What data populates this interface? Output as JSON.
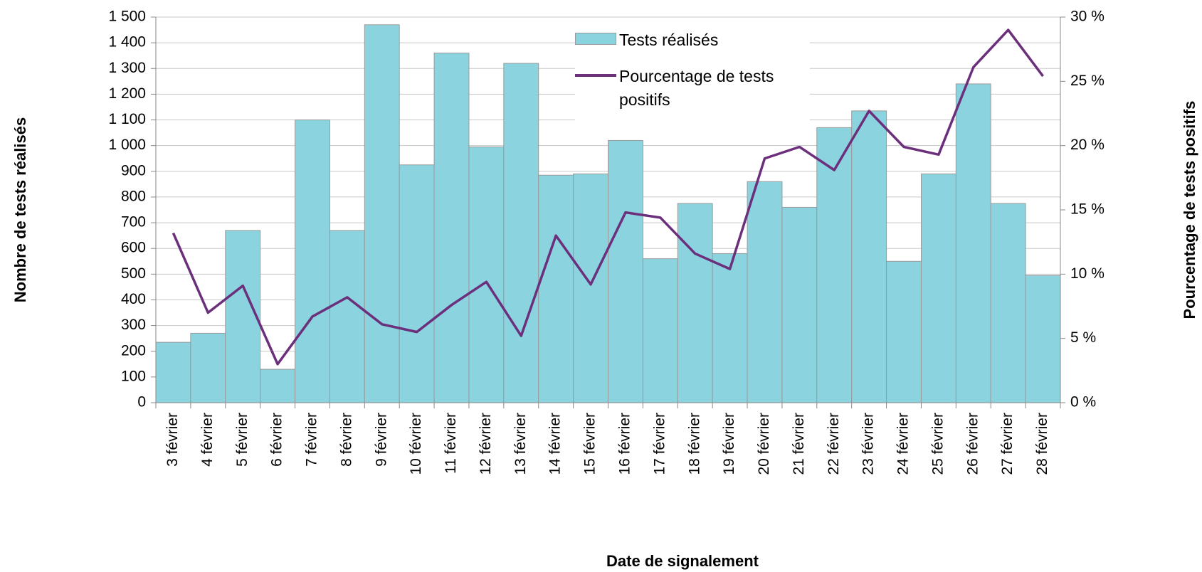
{
  "chart_data": {
    "type": "bar",
    "x_label": "Date de signalement",
    "y_label": "Nombre de tests réalisés",
    "y2_label": "Pourcentage de tests positifs",
    "categories": [
      "3 février",
      "4 février",
      "5 février",
      "6 février",
      "7 février",
      "8 février",
      "9 février",
      "10 février",
      "11 février",
      "12 février",
      "13 février",
      "14 février",
      "15 février",
      "16 février",
      "17 février",
      "18 février",
      "19 février",
      "20 février",
      "21 février",
      "22 février",
      "23 février",
      "24 février",
      "25 février",
      "26 février",
      "27 février",
      "28 février"
    ],
    "series": [
      {
        "name": "Tests réalisés",
        "type": "bar",
        "color": "#8ad3df",
        "values": [
          235,
          270,
          670,
          130,
          1100,
          670,
          1470,
          925,
          1360,
          995,
          1320,
          885,
          890,
          1020,
          560,
          775,
          580,
          860,
          760,
          1070,
          1135,
          550,
          890,
          1240,
          775,
          495
        ]
      },
      {
        "name": "Pourcentage de tests positifs",
        "type": "line",
        "color": "#6b2f7b",
        "axis": "y2",
        "values": [
          13.2,
          7.0,
          9.1,
          3.0,
          6.7,
          8.2,
          6.1,
          5.5,
          7.6,
          9.4,
          5.2,
          13.0,
          9.2,
          14.8,
          14.4,
          11.6,
          10.4,
          19.0,
          19.9,
          18.1,
          22.7,
          19.9,
          19.3,
          26.1,
          29.0,
          25.4
        ]
      }
    ],
    "ylim": [
      0,
      1500
    ],
    "yticks": [
      0,
      100,
      200,
      300,
      400,
      500,
      600,
      700,
      800,
      900,
      {
        "value": 1000,
        "label": "1 000"
      },
      {
        "value": 1100,
        "label": "1 100"
      },
      {
        "value": 1200,
        "label": "1 200"
      },
      {
        "value": 1300,
        "label": "1 300"
      },
      {
        "value": 1400,
        "label": "1 400"
      },
      {
        "value": 1500,
        "label": "1 500"
      }
    ],
    "y2lim": [
      0,
      30
    ],
    "y2ticks": [
      {
        "value": 0,
        "label": "0 %"
      },
      {
        "value": 5,
        "label": "5 %"
      },
      {
        "value": 10,
        "label": "10 %"
      },
      {
        "value": 15,
        "label": "15 %"
      },
      {
        "value": 20,
        "label": "20 %"
      },
      {
        "value": 25,
        "label": "25 %"
      },
      {
        "value": 30,
        "label": "30 %"
      }
    ],
    "grid": true
  }
}
